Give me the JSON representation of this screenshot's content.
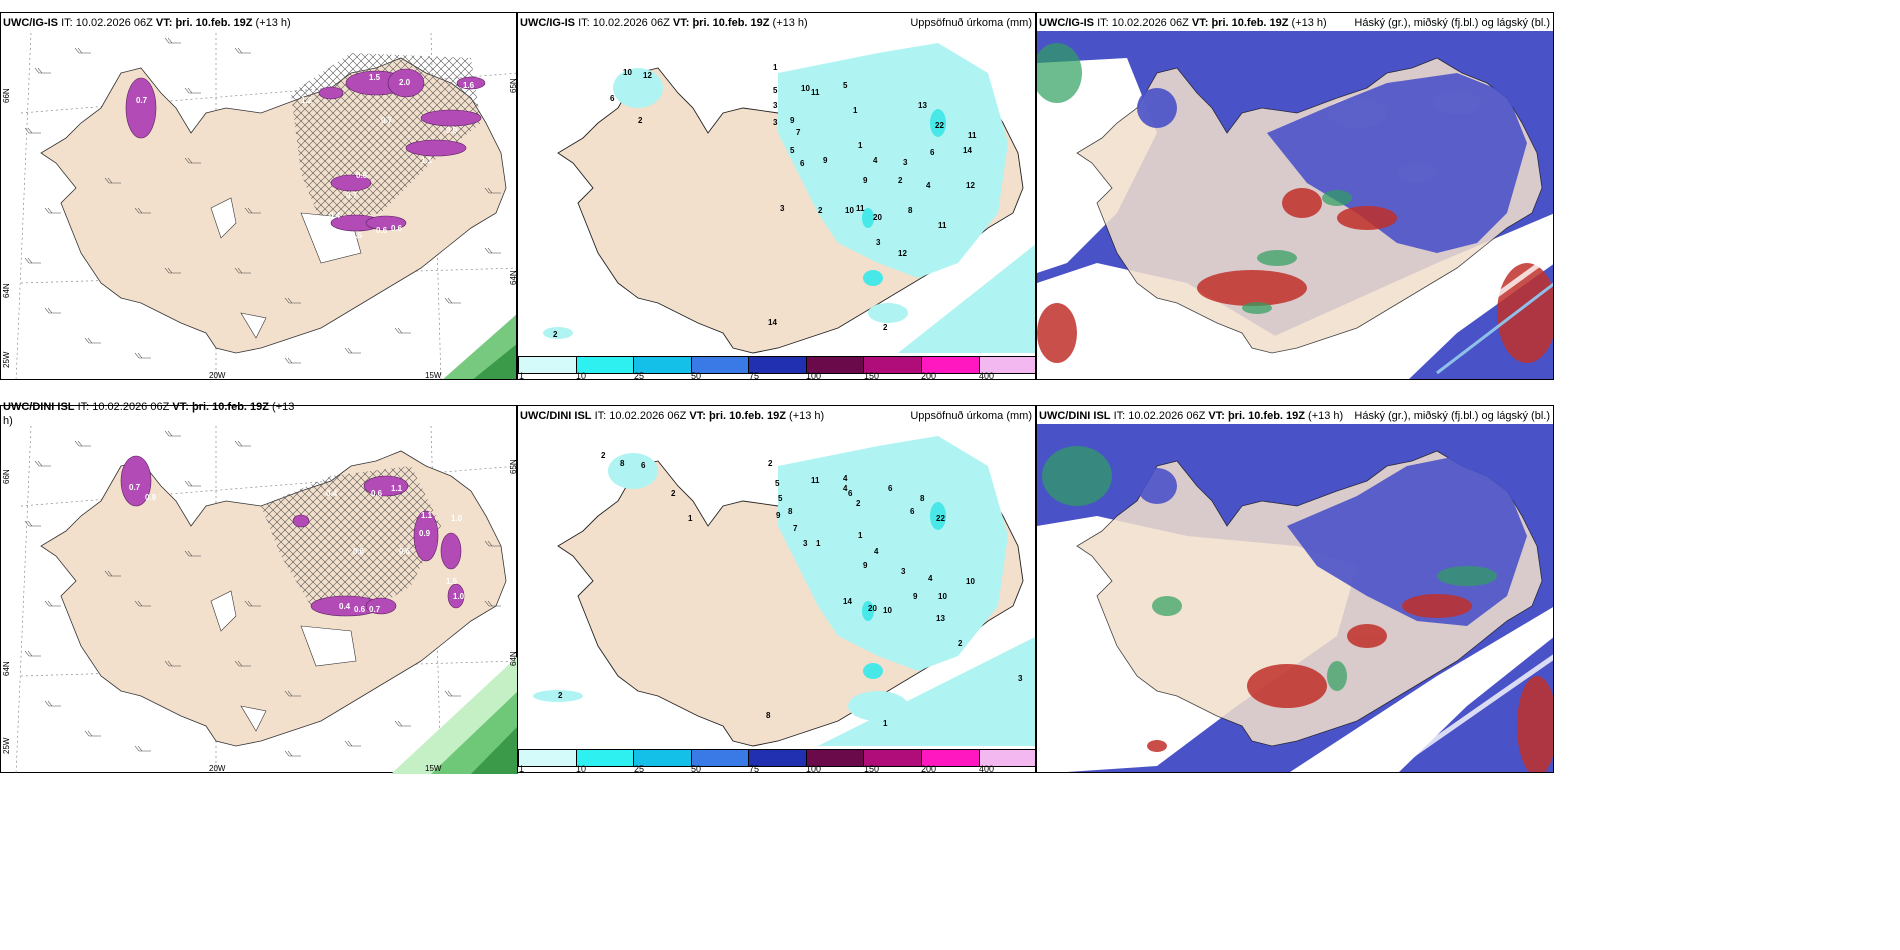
{
  "colors": {
    "land": "#f2dfcc",
    "precip_light": "#aff4f2",
    "precip_mid": "#48e8e8",
    "snow_purple": "#b24bb5",
    "cloud_blue": "#4a52c8",
    "cloud_green": "#2fa060",
    "cloud_red": "#c0302a",
    "wind_green": "#5fbf6a"
  },
  "icons": {
    "wind_barb": "wind-barb-icon",
    "hatch": "ice-hatch-pattern"
  },
  "top_row": {
    "panel1": {
      "model": "UWC/IG-IS",
      "it_prefix": "IT:",
      "it": "10.02.2026 06Z",
      "vt_prefix": "VT:",
      "vt": "þri. 10.feb. 19Z",
      "lead": "(+13 h)",
      "lat_labels": [
        "66N",
        "64N",
        "25W"
      ],
      "lon_labels": [
        "20W",
        "15W"
      ],
      "right_lat": [
        "65N",
        "64N"
      ],
      "values": [
        "1.5",
        "2.0",
        "0.7",
        "1.2",
        "0.7",
        "0.9",
        "1.1",
        "0.6",
        "0.7",
        "0.4",
        "0.5",
        "0.6",
        "0.6",
        "1.6"
      ]
    },
    "panel2": {
      "model": "UWC/IG-IS",
      "it_prefix": "IT:",
      "it": "10.02.2026 06Z",
      "vt_prefix": "VT:",
      "vt": "þri. 10.feb. 19Z",
      "lead": "(+13 h)",
      "right_title": "Uppsöfnuð úrkoma (mm)",
      "legend_labels": [
        "1",
        "10",
        "25",
        "50",
        "75",
        "100",
        "150",
        "200",
        "400"
      ],
      "values": [
        "10",
        "12",
        "6",
        "2",
        "1",
        "5",
        "3",
        "10",
        "11",
        "5",
        "3",
        "9",
        "7",
        "5",
        "6",
        "9",
        "1",
        "1",
        "4",
        "9",
        "2",
        "3",
        "6",
        "22",
        "13",
        "11",
        "14",
        "12",
        "4",
        "3",
        "2",
        "10",
        "11",
        "20",
        "8",
        "11",
        "12",
        "3",
        "14",
        "2",
        "2"
      ]
    },
    "panel3": {
      "model": "UWC/IG-IS",
      "it_prefix": "IT:",
      "it": "10.02.2026 06Z",
      "vt_prefix": "VT:",
      "vt": "þri. 10.feb. 19Z",
      "lead": "(+13 h)",
      "right_title": "Háský (gr.), miðský (fj.bl.) og lágský (bl.)"
    }
  },
  "bottom_row": {
    "panel1": {
      "model": "UWC/DINI ISL",
      "it_prefix": "IT:",
      "it": "10.02.2026 06Z",
      "vt_prefix": "VT:",
      "vt": "þri. 10.feb. 19Z",
      "lead": "(+13",
      "lead2": "h)",
      "lat_labels": [
        "66N",
        "64N",
        "25W"
      ],
      "lon_labels": [
        "20W",
        "15W"
      ],
      "right_lat": [
        "65N",
        "64N"
      ],
      "values": [
        "0.7",
        "0.9",
        "0.4",
        "0.6",
        "1.1",
        "0.6",
        "0.6",
        "0.9",
        "1.0",
        "1.1",
        "0.4",
        "0.6",
        "0.7",
        "1.0",
        "1.5"
      ]
    },
    "panel2": {
      "model": "UWC/DINI ISL",
      "it_prefix": "IT:",
      "it": "10.02.2026 06Z",
      "vt_prefix": "VT:",
      "vt": "þri. 10.feb. 19Z",
      "lead": "(+13 h)",
      "right_title": "Uppsöfnuð úrkoma (mm)",
      "legend_labels": [
        "1",
        "10",
        "25",
        "50",
        "75",
        "100",
        "150",
        "200",
        "400"
      ],
      "values": [
        "2",
        "8",
        "6",
        "2",
        "1",
        "2",
        "5",
        "11",
        "4",
        "6",
        "7",
        "5",
        "9",
        "8",
        "3",
        "4",
        "2",
        "6",
        "8",
        "22",
        "6",
        "1",
        "9",
        "4",
        "3",
        "10",
        "4",
        "14",
        "20",
        "10",
        "9",
        "10",
        "13",
        "2",
        "2",
        "1",
        "3",
        "8",
        "1"
      ]
    },
    "panel3": {
      "model": "UWC/DINI ISL",
      "it_prefix": "IT:",
      "it": "10.02.2026 06Z",
      "vt_prefix": "VT:",
      "vt": "þri. 10.feb. 19Z",
      "lead": "(+13 h)",
      "right_title": "Háský (gr.), miðský (fj.bl.) og lágský (bl.)"
    }
  }
}
